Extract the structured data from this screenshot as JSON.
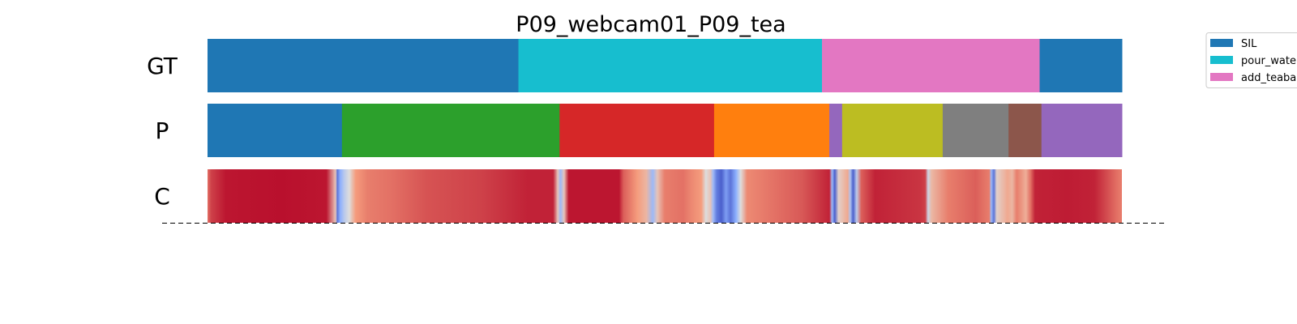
{
  "chart_data": {
    "type": "segmentation_timeline",
    "title": "P09_webcam01_P09_tea",
    "rows": [
      {
        "label": "GT",
        "kind": "segments",
        "segments": [
          {
            "start": 0.0,
            "end": 0.34,
            "color": "#1f77b4"
          },
          {
            "start": 0.34,
            "end": 0.672,
            "color": "#17becf"
          },
          {
            "start": 0.672,
            "end": 0.91,
            "color": "#e377c2"
          },
          {
            "start": 0.91,
            "end": 1.0,
            "color": "#1f77b4"
          }
        ]
      },
      {
        "label": "P",
        "kind": "segments",
        "segments": [
          {
            "start": 0.0,
            "end": 0.147,
            "color": "#1f77b4"
          },
          {
            "start": 0.147,
            "end": 0.385,
            "color": "#2ca02c"
          },
          {
            "start": 0.385,
            "end": 0.554,
            "color": "#d62728"
          },
          {
            "start": 0.554,
            "end": 0.68,
            "color": "#ff7f0e"
          },
          {
            "start": 0.68,
            "end": 0.694,
            "color": "#9467bd"
          },
          {
            "start": 0.694,
            "end": 0.804,
            "color": "#bcbd22"
          },
          {
            "start": 0.804,
            "end": 0.876,
            "color": "#7f7f7f"
          },
          {
            "start": 0.876,
            "end": 0.912,
            "color": "#8c564b"
          },
          {
            "start": 0.912,
            "end": 1.0,
            "color": "#9467bd"
          }
        ]
      },
      {
        "label": "C",
        "kind": "confidence",
        "colormap": "coolwarm",
        "stops": [
          [
            0.0,
            0.82
          ],
          [
            0.004,
            0.9
          ],
          [
            0.02,
            0.97
          ],
          [
            0.08,
            0.98
          ],
          [
            0.13,
            0.97
          ],
          [
            0.14,
            0.6
          ],
          [
            0.142,
            0.1
          ],
          [
            0.145,
            0.25
          ],
          [
            0.15,
            0.4
          ],
          [
            0.155,
            0.5
          ],
          [
            0.162,
            0.75
          ],
          [
            0.175,
            0.8
          ],
          [
            0.2,
            0.82
          ],
          [
            0.24,
            0.87
          ],
          [
            0.3,
            0.9
          ],
          [
            0.35,
            0.95
          ],
          [
            0.378,
            0.95
          ],
          [
            0.383,
            0.6
          ],
          [
            0.386,
            0.3
          ],
          [
            0.39,
            0.6
          ],
          [
            0.395,
            0.97
          ],
          [
            0.45,
            0.97
          ],
          [
            0.455,
            0.85
          ],
          [
            0.47,
            0.75
          ],
          [
            0.48,
            0.65
          ],
          [
            0.487,
            0.3
          ],
          [
            0.492,
            0.6
          ],
          [
            0.5,
            0.8
          ],
          [
            0.52,
            0.82
          ],
          [
            0.53,
            0.78
          ],
          [
            0.54,
            0.75
          ],
          [
            0.545,
            0.5
          ],
          [
            0.55,
            0.6
          ],
          [
            0.553,
            0.3
          ],
          [
            0.557,
            0.12
          ],
          [
            0.562,
            0.05
          ],
          [
            0.567,
            0.2
          ],
          [
            0.572,
            0.1
          ],
          [
            0.578,
            0.25
          ],
          [
            0.583,
            0.5
          ],
          [
            0.59,
            0.78
          ],
          [
            0.62,
            0.82
          ],
          [
            0.65,
            0.86
          ],
          [
            0.67,
            0.92
          ],
          [
            0.68,
            0.95
          ],
          [
            0.683,
            0.3
          ],
          [
            0.686,
            0.05
          ],
          [
            0.69,
            0.55
          ],
          [
            0.7,
            0.7
          ],
          [
            0.703,
            0.35
          ],
          [
            0.706,
            0.05
          ],
          [
            0.71,
            0.4
          ],
          [
            0.715,
            0.85
          ],
          [
            0.73,
            0.95
          ],
          [
            0.78,
            0.92
          ],
          [
            0.785,
            0.9
          ],
          [
            0.788,
            0.45
          ],
          [
            0.792,
            0.65
          ],
          [
            0.81,
            0.8
          ],
          [
            0.84,
            0.85
          ],
          [
            0.855,
            0.8
          ],
          [
            0.857,
            0.3
          ],
          [
            0.86,
            0.1
          ],
          [
            0.863,
            0.55
          ],
          [
            0.875,
            0.7
          ],
          [
            0.88,
            0.65
          ],
          [
            0.885,
            0.8
          ],
          [
            0.895,
            0.68
          ],
          [
            0.9,
            0.82
          ],
          [
            0.905,
            0.95
          ],
          [
            0.94,
            0.96
          ],
          [
            0.97,
            0.95
          ],
          [
            0.98,
            0.9
          ],
          [
            0.995,
            0.82
          ],
          [
            1.0,
            0.8
          ]
        ]
      }
    ],
    "legend": {
      "placement": "upper-right",
      "entries": [
        {
          "label": "SIL",
          "color": "#1f77b4"
        },
        {
          "label": "pour_water",
          "color": "#17becf"
        },
        {
          "label": "add_teabag",
          "color": "#e377c2"
        }
      ]
    }
  }
}
